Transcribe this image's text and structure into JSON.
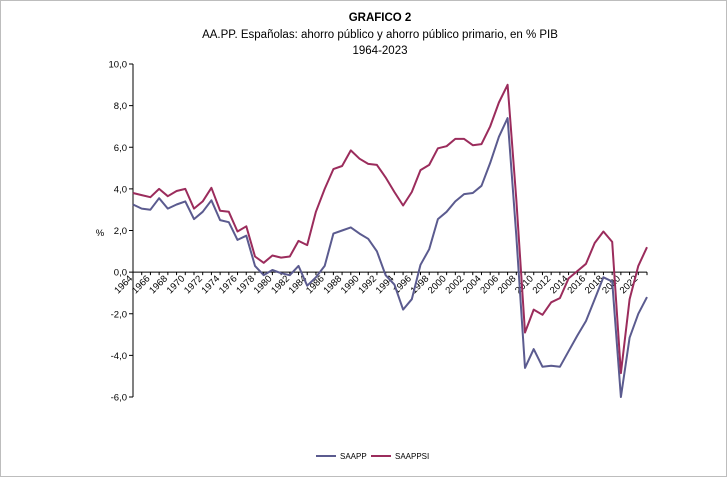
{
  "chart_data": {
    "type": "line",
    "title": "GRAFICO 2",
    "subtitle": "AA.PP. Españolas:  ahorro público y ahorro público primario, en % PIB",
    "subtitle2": "1964-2023",
    "xlabel": "",
    "ylabel": "%",
    "ylim": [
      -6,
      10
    ],
    "yticks": [
      "10,0",
      "8,0",
      "6,0",
      "4,0",
      "2,0",
      "0,0",
      "-2,0",
      "-4,0",
      "-6,0"
    ],
    "ytick_values": [
      10,
      8,
      6,
      4,
      2,
      0,
      -2,
      -4,
      -6
    ],
    "xticks": [
      "1964",
      "1966",
      "1968",
      "1970",
      "1972",
      "1974",
      "1976",
      "1978",
      "1980",
      "1982",
      "1984",
      "1986",
      "1988",
      "1990",
      "1992",
      "1994",
      "1996",
      "1998",
      "2000",
      "2002",
      "2004",
      "2006",
      "2008",
      "2010",
      "2012",
      "2014",
      "2016",
      "2018",
      "2020",
      "2022"
    ],
    "grid": false,
    "legend_position": "bottom",
    "x": [
      1964,
      1965,
      1966,
      1967,
      1968,
      1969,
      1970,
      1971,
      1972,
      1973,
      1974,
      1975,
      1976,
      1977,
      1978,
      1979,
      1980,
      1981,
      1982,
      1983,
      1984,
      1985,
      1986,
      1987,
      1988,
      1989,
      1990,
      1991,
      1992,
      1993,
      1994,
      1995,
      1996,
      1997,
      1998,
      1999,
      2000,
      2001,
      2002,
      2003,
      2004,
      2005,
      2006,
      2007,
      2008,
      2009,
      2010,
      2011,
      2012,
      2013,
      2014,
      2015,
      2016,
      2017,
      2018,
      2019,
      2020,
      2021,
      2022,
      2023
    ],
    "series": [
      {
        "name": "SAAPP",
        "color": "#5b5b8f",
        "values": [
          3.25,
          3.05,
          3.0,
          3.55,
          3.05,
          3.25,
          3.4,
          2.55,
          2.9,
          3.45,
          2.5,
          2.4,
          1.55,
          1.75,
          0.3,
          -0.15,
          0.1,
          -0.05,
          -0.15,
          0.3,
          -0.65,
          -0.25,
          0.3,
          1.85,
          2.0,
          2.15,
          1.85,
          1.6,
          1.0,
          -0.15,
          -0.6,
          -1.8,
          -1.3,
          0.35,
          1.1,
          2.55,
          2.9,
          3.4,
          3.75,
          3.8,
          4.15,
          5.25,
          6.5,
          7.4,
          1.75,
          -4.6,
          -3.7,
          -4.55,
          -4.5,
          -4.55,
          -3.8,
          -3.05,
          -2.35,
          -1.3,
          -0.25,
          -0.45,
          -6.0,
          -3.15,
          -2.0,
          -1.2
        ]
      },
      {
        "name": "SAAPPSI",
        "color": "#9b2c5c",
        "values": [
          3.8,
          3.7,
          3.6,
          4.0,
          3.65,
          3.9,
          4.0,
          3.05,
          3.4,
          4.05,
          2.95,
          2.9,
          1.95,
          2.2,
          0.75,
          0.45,
          0.8,
          0.7,
          0.75,
          1.5,
          1.3,
          2.9,
          4.0,
          4.95,
          5.1,
          5.85,
          5.45,
          5.2,
          5.15,
          4.55,
          3.85,
          3.2,
          3.85,
          4.9,
          5.15,
          5.95,
          6.05,
          6.4,
          6.4,
          6.1,
          6.15,
          7.0,
          8.15,
          9.0,
          3.5,
          -2.9,
          -1.8,
          -2.05,
          -1.45,
          -1.25,
          -0.3,
          0.05,
          0.4,
          1.4,
          1.95,
          1.45,
          -4.85,
          -1.3,
          0.3,
          1.2
        ]
      }
    ]
  }
}
